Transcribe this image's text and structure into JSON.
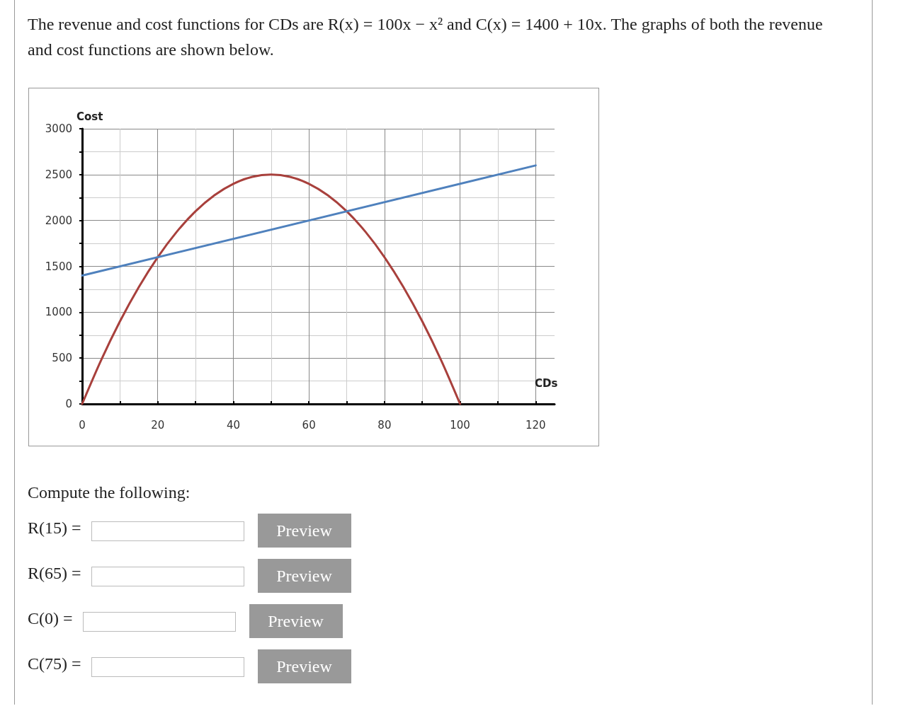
{
  "chart_data": {
    "type": "line",
    "title": "The revenue and cost functions for CDs are R(x) = 100x − x² and C(x) = 1400 + 10x. The graphs of both the revenue and cost functions are shown below.",
    "xlabel": "CDs",
    "ylabel": "Cost",
    "xlim": [
      0,
      125
    ],
    "xticks": [
      0,
      20,
      40,
      60,
      80,
      100,
      120
    ],
    "ylim": [
      0,
      3000
    ],
    "yticks": [
      0,
      500,
      1000,
      1500,
      2000,
      2500,
      3000
    ],
    "grid": true,
    "marker": "none",
    "line_style": "solid",
    "series": [
      {
        "color": "#a8403c",
        "x": [
          0,
          5,
          10,
          15,
          20,
          25,
          30,
          35,
          40,
          45,
          50,
          55,
          60,
          65,
          70,
          75,
          80,
          85,
          90,
          95,
          100
        ],
        "values": [
          0,
          475,
          900,
          1275,
          1600,
          1875,
          2100,
          2275,
          2400,
          2475,
          2500,
          2475,
          2400,
          2275,
          2100,
          1875,
          1600,
          1275,
          900,
          475,
          0
        ]
      },
      {
        "color": "#4f81bd",
        "x": [
          0,
          120
        ],
        "values": [
          1400,
          2600
        ]
      }
    ],
    "annotations": [
      "Compute the following:",
      "R(15) =",
      "Preview",
      "R(65) =",
      "Preview",
      "C(0) =",
      "Preview",
      "C(75) =",
      "Preview"
    ]
  }
}
